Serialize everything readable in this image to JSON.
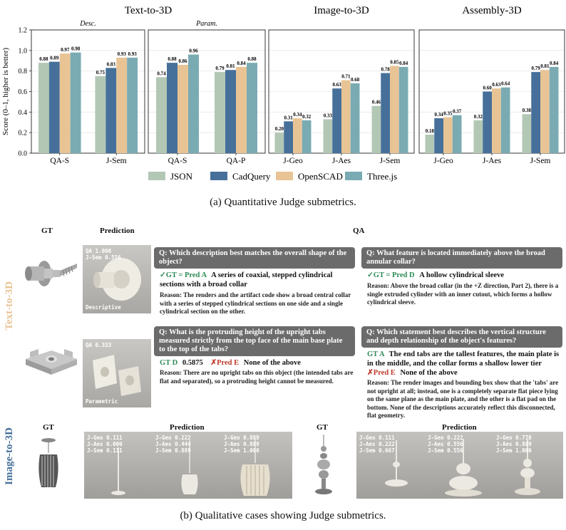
{
  "chart_data": {
    "type": "bar",
    "ylabel": "Score (0–1, higher is better)",
    "ylim": [
      0,
      1.2
    ],
    "yticks": [
      "0.0",
      "0.2",
      "0.4",
      "0.6",
      "0.8",
      "1.0",
      "1.2"
    ],
    "colors": {
      "JSON": "#b3c7b5",
      "CadQuery": "#46709a",
      "OpenSCAD": "#e8c495",
      "Three.js": "#7aabb3"
    },
    "legend": [
      "JSON",
      "CadQuery",
      "OpenSCAD",
      "Three.js"
    ],
    "groups": [
      {
        "title": "Text-to-3D",
        "panels": [
          {
            "subtitle": "Desc.",
            "categories": [
              "QA-S",
              "J-Sem"
            ],
            "values": [
              [
                0.88,
                0.89,
                0.97,
                0.98
              ],
              [
                0.75,
                0.83,
                0.93,
                0.93
              ]
            ],
            "labels": [
              [
                "0.88",
                "0.89",
                "0.97",
                "0.98"
              ],
              [
                "0.75",
                "0.83",
                "0.93",
                "0.93"
              ]
            ]
          },
          {
            "subtitle": "Param.",
            "categories": [
              "QA-S",
              "QA-P"
            ],
            "values": [
              [
                0.74,
                0.88,
                0.86,
                0.96
              ],
              [
                0.79,
                0.81,
                0.84,
                0.88
              ]
            ],
            "labels": [
              [
                "0.74",
                "0.88",
                "0.86",
                "0.96"
              ],
              [
                "0.79",
                "0.81",
                "0.84",
                "0.88"
              ]
            ]
          }
        ]
      },
      {
        "title": "Image-to-3D",
        "panels": [
          {
            "subtitle": "",
            "categories": [
              "J-Geo",
              "J-Aes",
              "J-Sem"
            ],
            "values": [
              [
                0.2,
                0.31,
                0.34,
                0.32
              ],
              [
                0.33,
                0.63,
                0.71,
                0.68
              ],
              [
                0.46,
                0.78,
                0.85,
                0.84
              ]
            ],
            "labels": [
              [
                "0.20",
                "0.31",
                "0.34",
                "0.32"
              ],
              [
                "0.33",
                "0.63",
                "0.71",
                "0.68"
              ],
              [
                "0.46",
                "0.78",
                "0.85",
                "0.84"
              ]
            ]
          }
        ]
      },
      {
        "title": "Assembly-3D",
        "panels": [
          {
            "subtitle": "",
            "categories": [
              "J-Geo",
              "J-Aes",
              "J-Sem"
            ],
            "values": [
              [
                0.18,
                0.34,
                0.35,
                0.37
              ],
              [
                0.32,
                0.6,
                0.63,
                0.64
              ],
              [
                0.38,
                0.79,
                0.81,
                0.84
              ]
            ],
            "labels": [
              [
                "0.18",
                "0.34",
                "0.35",
                "0.37"
              ],
              [
                "0.32",
                "0.60",
                "0.63",
                "0.64"
              ],
              [
                "0.38",
                "0.79",
                "0.81",
                "0.84"
              ]
            ]
          }
        ]
      }
    ]
  },
  "caption_a": "(a) Quantitative Judge submetrics.",
  "caption_b": "(b) Qualitative cases showing Judge submetrics.",
  "section_b": {
    "col_gt": "GT",
    "col_prediction": "Prediction",
    "col_qa": "QA",
    "row_text3d": "Text-to-3D",
    "row_image3d": "Image-to-3D",
    "case1": {
      "overlay_qa": "QA    1.000",
      "overlay_jsem": "J-Sem  0.556",
      "tag": "Descriptive",
      "q1": {
        "question": "Q: Which description best matches the overall shape of the object?",
        "mark": "✓GT = Pred A",
        "answer": "A series of coaxial, stepped cylindrical sections with a broad collar",
        "reason": "Reason: The renders and the artifact code show a broad central collar with a series of stepped cylindrical sections on one side and a single cylindrical section on the other."
      },
      "q2": {
        "question": "Q: What feature is located immediately above the broad annular collar?",
        "mark": "✓GT = Pred D",
        "answer": "A hollow cylindrical sleeve",
        "reason": "Reason: Above the broad collar (in the +Z direction, Part 2), there is a single extruded cylinder with an inner cutout, which forms a hollow cylindrical sleeve."
      }
    },
    "case2": {
      "overlay_qa": "QA  0.333",
      "tag": "Parametric",
      "q1": {
        "question": "Q: What is the protruding height of the upright tabs measured strictly from the top face of the main base plate to the top of the tabs?",
        "gt": "GT D",
        "gt_value": "0.5875",
        "pred": "✗Pred E",
        "pred_value": "None of the above",
        "reason": "Reason: There are no upright tabs on this object (the intended tabs are flat and separated), so a protruding height cannot be measured."
      },
      "q2": {
        "question": "Q: Which statement best describes the vertical structure and depth relationship of the object's features?",
        "gt": "GT A",
        "gt_value": "The end tabs are the tallest features, the main plate is in the middle, and the collar forms a shallow lower tier",
        "pred": "✗Pred E",
        "pred_value": "None of the above",
        "reason": "Reason: The render images and bounding box show that the 'tabs' are not upright at all; instead, one is a completely separate flat piece lying on the same plane as the main plate, and the other is a flat pad on the bottom. None of the descriptions accurately reflect this disconnected, flat geometry."
      }
    },
    "image_cases": [
      {
        "preds": [
          {
            "lines": [
              "J-Geo  0.111",
              "J-Aes  0.000",
              "J-Sem  0.111"
            ]
          },
          {
            "lines": [
              "J-Geo  0.222",
              "J-Aes  0.444",
              "J-Sem  0.889"
            ]
          },
          {
            "lines": [
              "J-Geo  0.889",
              "J-Aes  0.889",
              "J-Sem  1.000"
            ]
          }
        ]
      },
      {
        "preds": [
          {
            "lines": [
              "J-Geo  0.111",
              "J-Aes  0.222",
              "J-Sem  0.667"
            ]
          },
          {
            "lines": [
              "J-Geo  0.222",
              "J-Aes  0.556",
              "J-Sem  0.556"
            ]
          },
          {
            "lines": [
              "J-Geo  0.778",
              "J-Aes  0.889",
              "J-Sem  1.000"
            ]
          }
        ]
      }
    ]
  }
}
